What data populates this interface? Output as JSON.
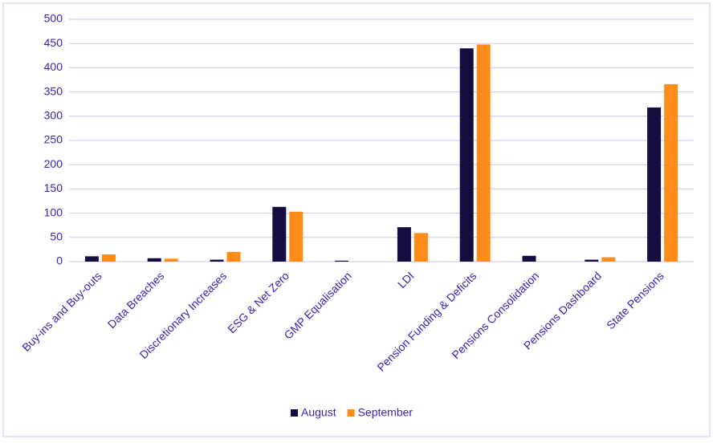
{
  "chart_data": {
    "type": "bar",
    "categories": [
      "Buy-ins and Buy-outs",
      "Data Breaches",
      "Discretionary Increases",
      "ESG & Net Zero",
      "GMP Equalisation",
      "LDI",
      "Pension Funding & Deficits",
      "Pensions Consolidation",
      "Pensions Dashboard",
      "State Pensions"
    ],
    "series": [
      {
        "name": "August",
        "color": "#160c40",
        "values": [
          11,
          7,
          4,
          113,
          2,
          71,
          440,
          12,
          4,
          318
        ]
      },
      {
        "name": "September",
        "color": "#ff8c1a",
        "values": [
          15,
          6,
          20,
          103,
          0,
          59,
          448,
          0,
          9,
          366
        ]
      }
    ],
    "ylim": [
      0,
      500
    ],
    "yticks": [
      0,
      50,
      100,
      150,
      200,
      250,
      300,
      350,
      400,
      450,
      500
    ],
    "grid": true,
    "legend": "bottom"
  }
}
